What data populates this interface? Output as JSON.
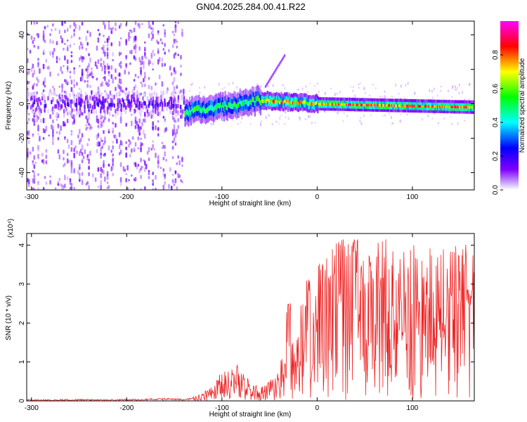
{
  "figure_title": "GN04.2025.284.00.41.R22",
  "chart_data": [
    {
      "type": "heatmap",
      "title": "GN04.2025.284.00.41.R22",
      "xlabel": "Height of straight line (km)",
      "ylabel": "Frequency (Hz)",
      "xlim": [
        -305,
        165
      ],
      "ylim": [
        -50,
        48
      ],
      "xticks": [
        -300,
        -200,
        -100,
        0,
        100
      ],
      "yticks": [
        -40,
        -20,
        0,
        20,
        40
      ],
      "grid": false,
      "colorbar": {
        "label": "Normalized spectral amplitude",
        "range": [
          0,
          1
        ],
        "ticks": [
          0.0,
          0.2,
          0.4,
          0.6,
          0.8
        ],
        "colors": [
          "#ffffff",
          "#8000ff",
          "#0000ff",
          "#00ffff",
          "#00ff00",
          "#ffff00",
          "#ff0000",
          "#ff00ff"
        ]
      },
      "features": {
        "noise_region_x": [
          -305,
          -140
        ],
        "central_band_frequency_hz": [
          -3,
          3
        ],
        "peak_amplitude_region_x": [
          -60,
          165
        ],
        "rising_streak": [
          [
            -55,
            10
          ],
          [
            -35,
            28
          ]
        ]
      }
    },
    {
      "type": "line",
      "xlabel": "Height of straight line (km)",
      "ylabel": "SNR (10 * v/v)",
      "y_multiplier": "(x10⁴)",
      "xlim": [
        -305,
        165
      ],
      "ylim": [
        0,
        4.3
      ],
      "xticks": [
        -300,
        -200,
        -100,
        0,
        100
      ],
      "yticks": [
        0,
        1,
        2,
        3,
        4
      ],
      "grid": false,
      "color": "#ee2222",
      "series": [
        {
          "x": [
            -305,
            -280,
            -250,
            -220,
            -200,
            -180,
            -160,
            -140,
            -125,
            -115,
            -105,
            -95,
            -85,
            -75,
            -65,
            -55,
            -45,
            -35,
            -25,
            -15,
            -5,
            5,
            15,
            25,
            35,
            45,
            55,
            65,
            75,
            85,
            95,
            105,
            115,
            125,
            135,
            145,
            155,
            165
          ],
          "values": [
            0.02,
            0.02,
            0.03,
            0.02,
            0.03,
            0.04,
            0.05,
            0.04,
            0.08,
            0.18,
            0.35,
            0.45,
            0.5,
            0.35,
            0.22,
            0.22,
            0.35,
            0.7,
            1.1,
            1.5,
            1.8,
            2.0,
            2.2,
            2.3,
            2.35,
            2.35,
            2.3,
            2.3,
            2.3,
            2.25,
            2.25,
            2.2,
            2.2,
            2.2,
            2.2,
            2.25,
            2.3,
            2.4
          ],
          "peaks": [
            [
              -85,
              0.95
            ],
            [
              -30,
              2.6
            ],
            [
              -10,
              3.15
            ],
            [
              15,
              3.35
            ],
            [
              30,
              4.3
            ],
            [
              40,
              4.25
            ],
            [
              55,
              3.9
            ],
            [
              70,
              3.4
            ],
            [
              85,
              3.1
            ],
            [
              105,
              2.9
            ],
            [
              140,
              2.95
            ],
            [
              160,
              2.9
            ]
          ]
        }
      ]
    }
  ]
}
